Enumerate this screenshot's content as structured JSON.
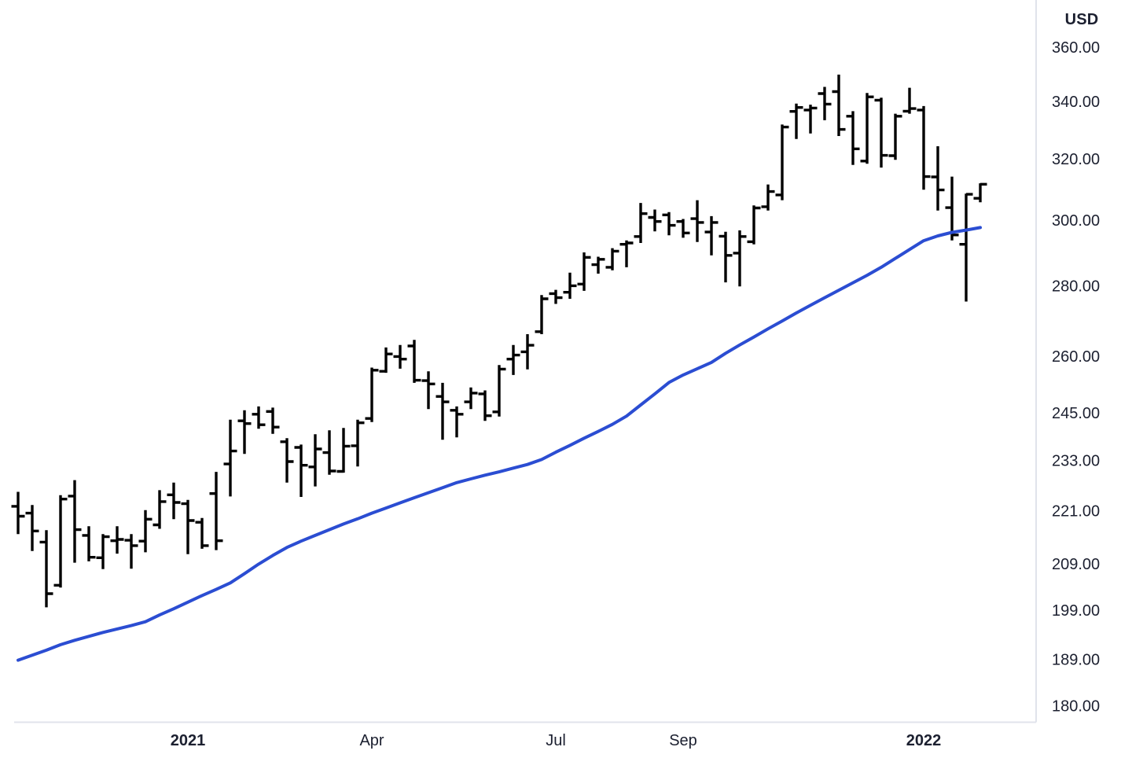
{
  "chart_data": {
    "type": "ohlc_bar_with_line",
    "title": "",
    "price_axis": {
      "unit": "USD",
      "side": "right",
      "scale": "log",
      "ticks": [
        360,
        340,
        320,
        300,
        280,
        260,
        245,
        233,
        221,
        209,
        199,
        189,
        180
      ],
      "tick_format": "fixed2"
    },
    "time_axis": {
      "ticks": [
        {
          "label": "2021",
          "bar": 13,
          "bold": true
        },
        {
          "label": "Apr",
          "bar": 26,
          "bold": false
        },
        {
          "label": "Jul",
          "bar": 39,
          "bold": false
        },
        {
          "label": "Sep",
          "bar": 48,
          "bold": false
        },
        {
          "label": "2022",
          "bar": 65,
          "bold": true
        }
      ]
    },
    "colors": {
      "bar": "#000000",
      "moving_average": "#2b4dd2",
      "axis_text": "#1c2030",
      "border": "#e0e3eb",
      "background": "#ffffff"
    },
    "series": [
      {
        "name": "price-weekly-ohlc",
        "type": "ohlc",
        "bars": [
          [
            222.0,
            225.4,
            215.6,
            219.7
          ],
          [
            220.4,
            222.3,
            211.8,
            216.3
          ],
          [
            213.8,
            216.5,
            199.6,
            202.5
          ],
          [
            204.3,
            224.6,
            203.8,
            223.7
          ],
          [
            224.4,
            228.2,
            209.2,
            216.6
          ],
          [
            215.3,
            217.4,
            209.5,
            210.4
          ],
          [
            210.3,
            215.6,
            207.8,
            215.0
          ],
          [
            214.1,
            217.4,
            211.2,
            214.4
          ],
          [
            214.2,
            215.6,
            207.9,
            213.0
          ],
          [
            214.0,
            221.1,
            211.5,
            219.0
          ],
          [
            217.7,
            225.8,
            216.8,
            223.1
          ],
          [
            224.7,
            227.6,
            219.0,
            222.9
          ],
          [
            222.6,
            223.5,
            211.1,
            218.7
          ],
          [
            218.3,
            219.3,
            212.3,
            213.0
          ],
          [
            225.0,
            230.2,
            212.0,
            214.1
          ],
          [
            232.1,
            243.2,
            224.3,
            235.3
          ],
          [
            242.9,
            245.6,
            234.6,
            242.2
          ],
          [
            244.6,
            246.6,
            240.9,
            241.9
          ],
          [
            245.3,
            246.3,
            239.6,
            241.3
          ],
          [
            237.6,
            238.5,
            227.6,
            232.7
          ],
          [
            236.2,
            236.9,
            224.2,
            231.8
          ],
          [
            231.4,
            239.5,
            226.7,
            235.8
          ],
          [
            234.9,
            240.5,
            229.5,
            230.4
          ],
          [
            230.3,
            241.1,
            230.0,
            236.5
          ],
          [
            236.6,
            243.2,
            231.5,
            242.4
          ],
          [
            243.5,
            256.9,
            242.6,
            256.2
          ],
          [
            255.9,
            262.4,
            255.5,
            260.6
          ],
          [
            259.9,
            263.1,
            256.6,
            259.2
          ],
          [
            262.8,
            264.5,
            252.8,
            253.5
          ],
          [
            253.4,
            255.9,
            245.9,
            252.5
          ],
          [
            249.2,
            252.8,
            238.1,
            247.8
          ],
          [
            245.6,
            246.6,
            238.7,
            244.6
          ],
          [
            247.8,
            251.6,
            245.9,
            250.1
          ],
          [
            249.9,
            250.8,
            242.9,
            244.2
          ],
          [
            245.2,
            257.6,
            244.0,
            256.5
          ],
          [
            259.2,
            263.1,
            254.9,
            260.3
          ],
          [
            261.2,
            266.1,
            256.4,
            263.0
          ],
          [
            266.8,
            277.3,
            266.1,
            276.2
          ],
          [
            277.7,
            278.8,
            274.7,
            276.5
          ],
          [
            278.1,
            283.9,
            276.2,
            280.0
          ],
          [
            280.5,
            290.0,
            278.5,
            288.5
          ],
          [
            286.3,
            288.7,
            283.6,
            287.9
          ],
          [
            285.5,
            291.3,
            284.6,
            290.4
          ],
          [
            292.5,
            293.7,
            285.5,
            292.9
          ],
          [
            294.9,
            305.5,
            292.9,
            302.1
          ],
          [
            300.9,
            303.4,
            296.5,
            299.6
          ],
          [
            301.7,
            302.6,
            295.3,
            298.4
          ],
          [
            299.6,
            300.4,
            294.5,
            296.0
          ],
          [
            300.5,
            306.4,
            293.2,
            299.3
          ],
          [
            296.3,
            301.3,
            289.1,
            299.3
          ],
          [
            295.0,
            296.4,
            281.0,
            289.1
          ],
          [
            289.8,
            296.8,
            279.8,
            294.9
          ],
          [
            293.3,
            304.7,
            292.5,
            303.9
          ],
          [
            304.3,
            311.5,
            303.1,
            309.2
          ],
          [
            308.1,
            331.8,
            306.4,
            330.9
          ],
          [
            336.4,
            339.2,
            326.8,
            337.8
          ],
          [
            336.9,
            338.8,
            328.7,
            337.6
          ],
          [
            342.8,
            345.2,
            333.3,
            339.0
          ],
          [
            343.5,
            349.7,
            327.8,
            330.1
          ],
          [
            334.7,
            336.5,
            318.0,
            323.4
          ],
          [
            319.3,
            343.0,
            318.4,
            341.6
          ],
          [
            340.4,
            341.3,
            317.1,
            321.2
          ],
          [
            321.1,
            335.6,
            319.7,
            334.7
          ],
          [
            336.5,
            344.9,
            335.6,
            337.4
          ],
          [
            336.9,
            338.3,
            309.8,
            314.1
          ],
          [
            314.0,
            324.3,
            303.1,
            309.7
          ],
          [
            304.0,
            314.1,
            293.7,
            295.4
          ],
          [
            292.5,
            308.5,
            275.4,
            308.3
          ],
          [
            307.0,
            311.9,
            305.7,
            311.6
          ]
        ]
      },
      {
        "name": "moving-average",
        "type": "line",
        "values": [
          188.8,
          189.8,
          190.8,
          191.9,
          192.8,
          193.6,
          194.4,
          195.1,
          195.8,
          196.6,
          198.0,
          199.3,
          200.7,
          202.1,
          203.4,
          204.8,
          206.8,
          208.9,
          210.8,
          212.6,
          214.0,
          215.3,
          216.6,
          217.9,
          219.1,
          220.4,
          221.6,
          222.8,
          224.0,
          225.2,
          226.4,
          227.6,
          228.5,
          229.4,
          230.2,
          231.1,
          232.0,
          233.2,
          235.0,
          236.7,
          238.5,
          240.2,
          242.0,
          244.1,
          247.0,
          249.9,
          252.9,
          254.9,
          256.6,
          258.3,
          260.8,
          263.1,
          265.3,
          267.6,
          269.8,
          272.1,
          274.3,
          276.5,
          278.7,
          280.9,
          283.1,
          285.5,
          288.2,
          290.9,
          293.6,
          295.1,
          296.2,
          296.9,
          297.7
        ]
      }
    ]
  }
}
